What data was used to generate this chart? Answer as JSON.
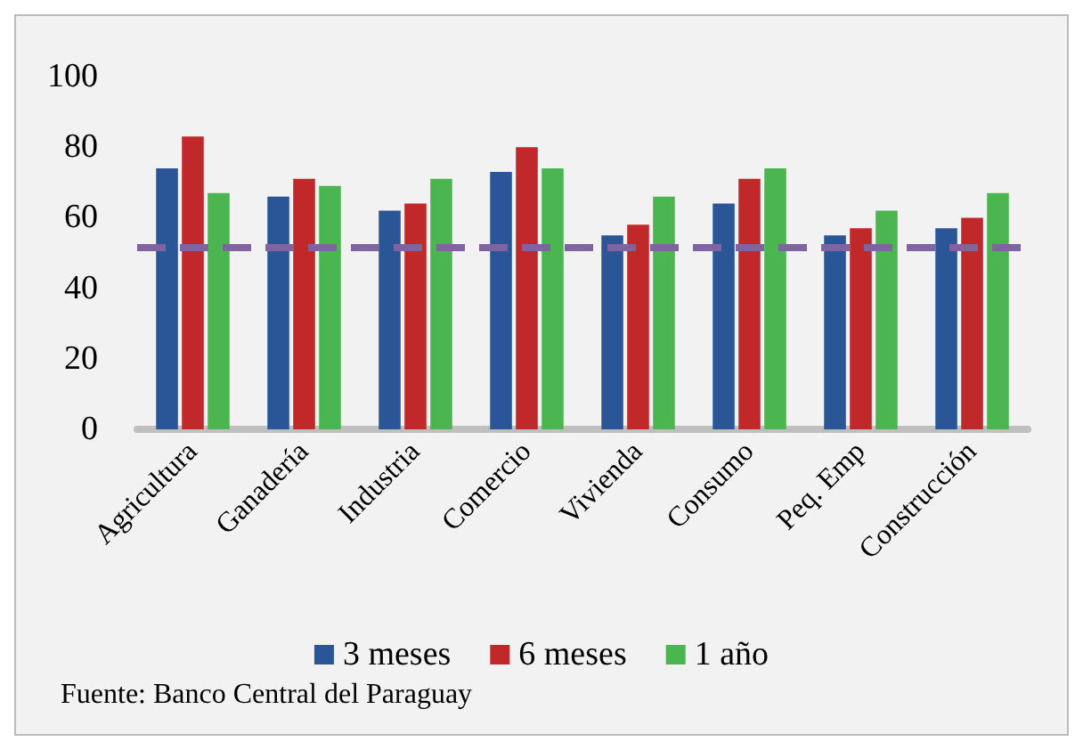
{
  "chart_data": {
    "type": "bar",
    "categories": [
      "Agricultura",
      "Ganadería",
      "Industria",
      "Comercio",
      "Vivienda",
      "Consumo",
      "Peq. Emp",
      "Construcción"
    ],
    "series": [
      {
        "name": "3 meses",
        "color": "#2a5597",
        "values": [
          74,
          66,
          62,
          73,
          55,
          64,
          55,
          57
        ]
      },
      {
        "name": "6 meses",
        "color": "#c0282a",
        "values": [
          83,
          71,
          64,
          80,
          58,
          71,
          57,
          60
        ]
      },
      {
        "name": "1 año",
        "color": "#4bb550",
        "values": [
          67,
          69,
          71,
          74,
          66,
          74,
          62,
          67
        ]
      }
    ],
    "ylim": [
      0,
      100
    ],
    "yticks": [
      0,
      20,
      40,
      60,
      80,
      100
    ],
    "grid": false,
    "legend": "bottom",
    "ref_lines": [
      {
        "axis": "y",
        "value": 51.5,
        "color": "#8064a2",
        "line_style": "dashed"
      }
    ],
    "annotations": [
      "Fuente: Banco Central del Paraguay"
    ]
  }
}
